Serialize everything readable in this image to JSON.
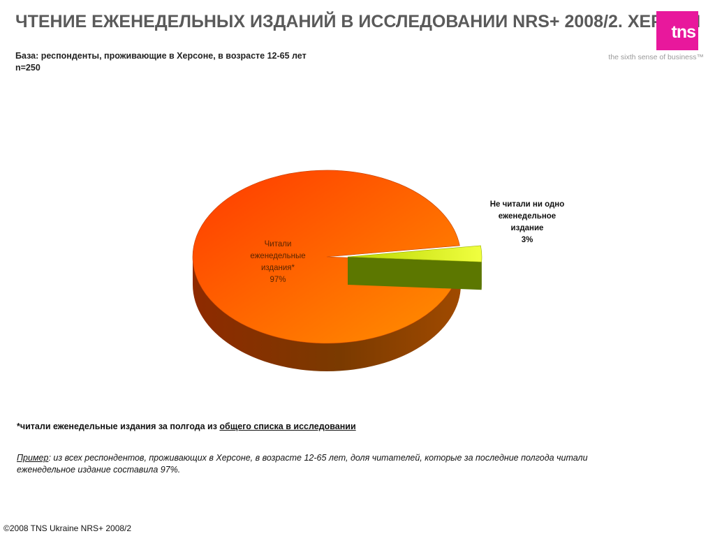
{
  "header": {
    "title": "ЧТЕНИЕ ЕЖЕНЕДЕЛЬНЫХ ИЗДАНИЙ В ИССЛЕДОВАНИИ NRS+ 2008/2. ХЕРСОН",
    "base": "База: респонденты, проживающие в Херсоне, в возрасте 12-65 лет",
    "n": "n=250"
  },
  "brand": {
    "logo_text": "tns",
    "logo_tm": "™",
    "tagline": "the sixth sense of business™",
    "color": "#e8189c"
  },
  "chart_data": {
    "type": "pie",
    "title": "",
    "slices": [
      {
        "line1": "Читали",
        "line2": "еженедельные",
        "line3": "издания*",
        "value_label": "97%",
        "value": 97,
        "color": "#ff5a00"
      },
      {
        "line1": "Не читали ни одно",
        "line2": "еженедельное",
        "line3": "издание",
        "value_label": "3%",
        "value": 3,
        "color": "#c8e000"
      }
    ],
    "style": "3d",
    "exploded_slice": 1
  },
  "notes": {
    "footnote_prefix": "*читали еженедельные издания за полгода из ",
    "footnote_link": "общего списка в исследовании",
    "example_head": "Пример",
    "example_text": ":  из всех респондентов, проживающих в Херсоне, в возрасте 12-65 лет, доля читателей, которые за последние полгода читали еженедельное издание составила  97%."
  },
  "footer": {
    "copyright": "©2008 TNS Ukraine  NRS+ 2008/2"
  }
}
